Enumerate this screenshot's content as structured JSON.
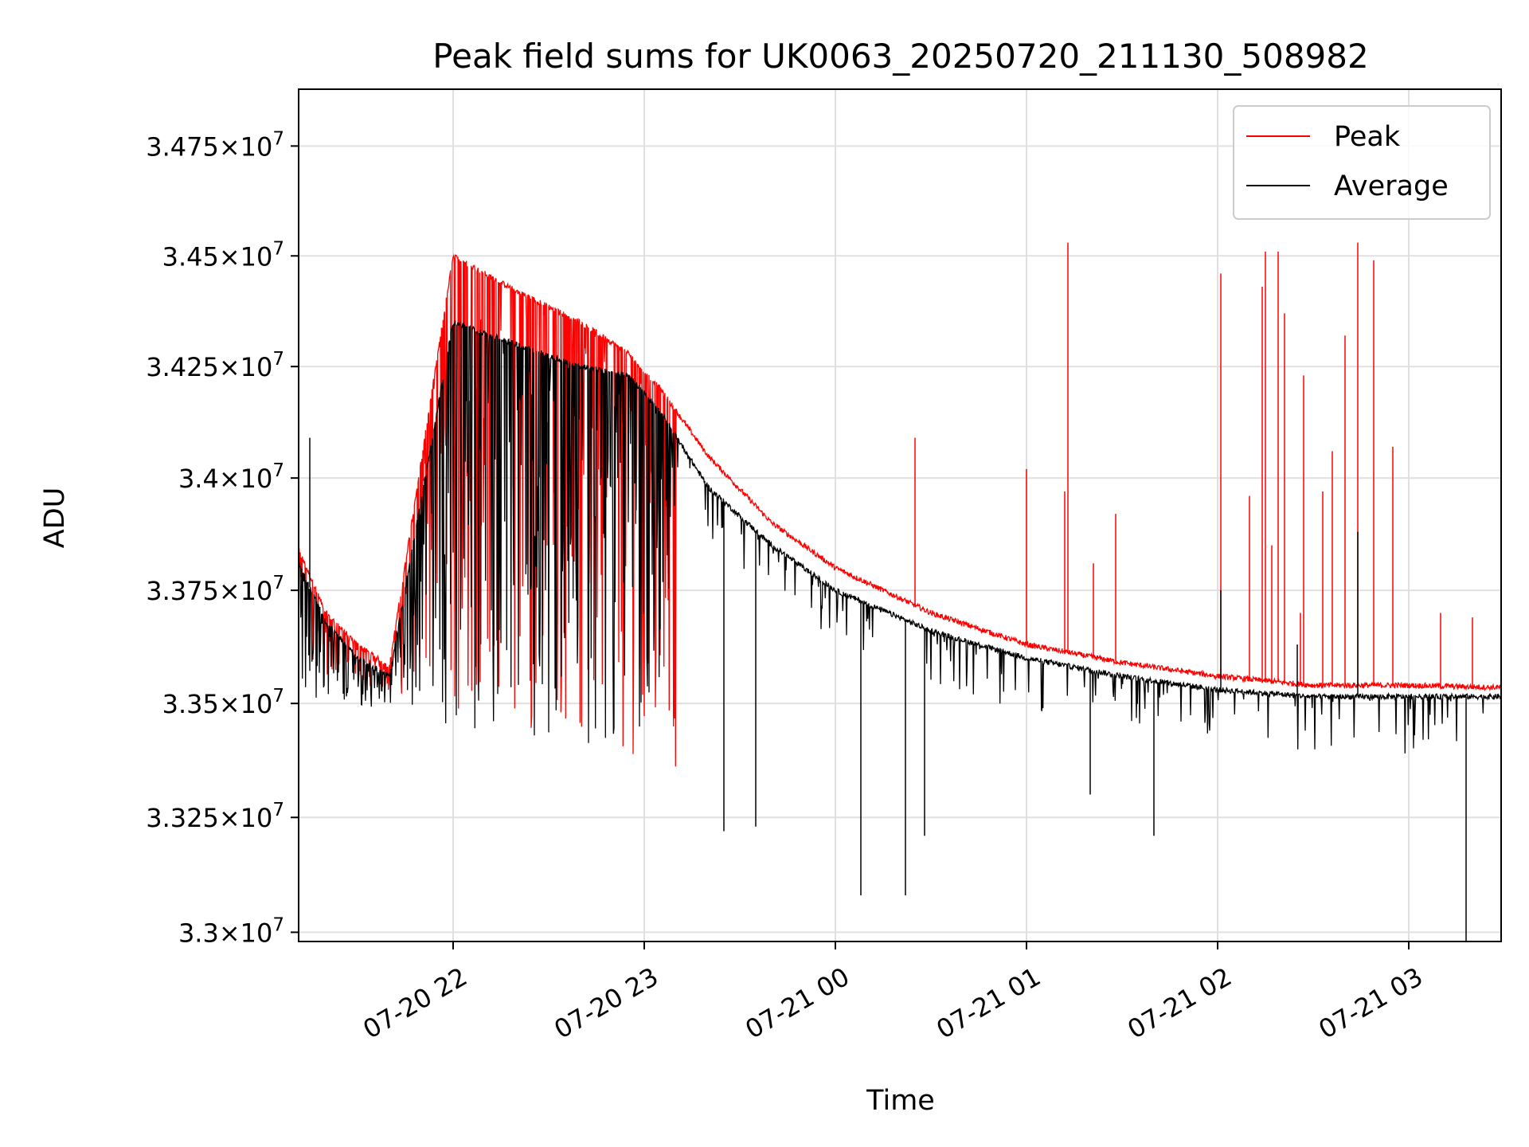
{
  "chart_data": {
    "type": "line",
    "title": "Peak field sums for UK0063_20250720_211130_508982",
    "xlabel": "Time",
    "ylabel": "ADU",
    "x_range": [
      "2025-07-20 21:11:30",
      "2025-07-21 03:29:00"
    ],
    "x_ticks": [
      {
        "label": "07-20 22",
        "time": "2025-07-20 22:00"
      },
      {
        "label": "07-20 23",
        "time": "2025-07-20 23:00"
      },
      {
        "label": "07-21 00",
        "time": "2025-07-21 00:00"
      },
      {
        "label": "07-21 01",
        "time": "2025-07-21 01:00"
      },
      {
        "label": "07-21 02",
        "time": "2025-07-21 02:00"
      },
      {
        "label": "07-21 03",
        "time": "2025-07-21 03:00"
      }
    ],
    "y_scale": "log",
    "ylim": [
      32980000,
      34880000
    ],
    "y_ticks": [
      {
        "mantissa": "3.3",
        "exp": "7",
        "value": 33000000
      },
      {
        "mantissa": "3.325",
        "exp": "7",
        "value": 33250000
      },
      {
        "mantissa": "3.35",
        "exp": "7",
        "value": 33500000
      },
      {
        "mantissa": "3.375",
        "exp": "7",
        "value": 33750000
      },
      {
        "mantissa": "3.4",
        "exp": "7",
        "value": 34000000
      },
      {
        "mantissa": "3.425",
        "exp": "7",
        "value": 34250000
      },
      {
        "mantissa": "3.45",
        "exp": "7",
        "value": 34500000
      },
      {
        "mantissa": "3.475",
        "exp": "7",
        "value": 34750000
      }
    ],
    "tick_times_mult": "×10",
    "grid": true,
    "legend_position": "top-right",
    "series": [
      {
        "name": "Peak",
        "color": "#ff0000",
        "baseline_points": [
          {
            "time": "2025-07-20 21:11:30",
            "value": 33840000
          },
          {
            "time": "2025-07-20 21:20",
            "value": 33700000
          },
          {
            "time": "2025-07-20 21:30",
            "value": 33630000
          },
          {
            "time": "2025-07-20 21:40",
            "value": 33580000
          },
          {
            "time": "2025-07-20 22:00",
            "value": 34500000
          },
          {
            "time": "2025-07-20 22:20",
            "value": 34420000
          },
          {
            "time": "2025-07-20 22:40",
            "value": 34350000
          },
          {
            "time": "2025-07-20 22:55",
            "value": 34280000
          },
          {
            "time": "2025-07-20 23:05",
            "value": 34200000
          },
          {
            "time": "2025-07-20 23:20",
            "value": 34050000
          },
          {
            "time": "2025-07-20 23:40",
            "value": 33900000
          },
          {
            "time": "2025-07-21 00:00",
            "value": 33800000
          },
          {
            "time": "2025-07-21 00:30",
            "value": 33700000
          },
          {
            "time": "2025-07-21 01:00",
            "value": 33630000
          },
          {
            "time": "2025-07-21 01:30",
            "value": 33590000
          },
          {
            "time": "2025-07-21 02:00",
            "value": 33560000
          },
          {
            "time": "2025-07-21 02:30",
            "value": 33540000
          },
          {
            "time": "2025-07-21 03:00",
            "value": 33540000
          },
          {
            "time": "2025-07-21 03:29",
            "value": 33535000
          }
        ],
        "spikes": [
          {
            "time": "2025-07-21 00:25",
            "value": 34090000
          },
          {
            "time": "2025-07-21 01:00",
            "value": 34020000
          },
          {
            "time": "2025-07-21 01:12",
            "value": 33970000
          },
          {
            "time": "2025-07-21 01:13",
            "value": 34530000
          },
          {
            "time": "2025-07-21 01:21",
            "value": 33810000
          },
          {
            "time": "2025-07-21 01:28",
            "value": 33920000
          },
          {
            "time": "2025-07-21 02:01",
            "value": 34460000
          },
          {
            "time": "2025-07-21 02:10",
            "value": 33960000
          },
          {
            "time": "2025-07-21 02:14",
            "value": 34430000
          },
          {
            "time": "2025-07-21 02:15",
            "value": 34510000
          },
          {
            "time": "2025-07-21 02:17",
            "value": 33850000
          },
          {
            "time": "2025-07-21 02:19",
            "value": 34510000
          },
          {
            "time": "2025-07-21 02:21",
            "value": 34370000
          },
          {
            "time": "2025-07-21 02:26",
            "value": 33700000
          },
          {
            "time": "2025-07-21 02:27",
            "value": 34230000
          },
          {
            "time": "2025-07-21 02:33",
            "value": 33970000
          },
          {
            "time": "2025-07-21 02:36",
            "value": 34060000
          },
          {
            "time": "2025-07-21 02:40",
            "value": 34320000
          },
          {
            "time": "2025-07-21 02:44",
            "value": 34530000
          },
          {
            "time": "2025-07-21 02:49",
            "value": 34490000
          },
          {
            "time": "2025-07-21 02:55",
            "value": 34070000
          },
          {
            "time": "2025-07-21 03:10",
            "value": 33700000
          },
          {
            "time": "2025-07-21 03:20",
            "value": 33690000
          }
        ]
      },
      {
        "name": "Average",
        "color": "#000000",
        "baseline_points": [
          {
            "time": "2025-07-20 21:11:30",
            "value": 33810000
          },
          {
            "time": "2025-07-20 21:20",
            "value": 33680000
          },
          {
            "time": "2025-07-20 21:30",
            "value": 33600000
          },
          {
            "time": "2025-07-20 21:40",
            "value": 33560000
          },
          {
            "time": "2025-07-20 22:00",
            "value": 34350000
          },
          {
            "time": "2025-07-20 22:20",
            "value": 34300000
          },
          {
            "time": "2025-07-20 22:40",
            "value": 34250000
          },
          {
            "time": "2025-07-20 22:55",
            "value": 34230000
          },
          {
            "time": "2025-07-20 23:05",
            "value": 34150000
          },
          {
            "time": "2025-07-20 23:20",
            "value": 33980000
          },
          {
            "time": "2025-07-20 23:40",
            "value": 33850000
          },
          {
            "time": "2025-07-21 00:00",
            "value": 33750000
          },
          {
            "time": "2025-07-21 00:30",
            "value": 33660000
          },
          {
            "time": "2025-07-21 01:00",
            "value": 33600000
          },
          {
            "time": "2025-07-21 01:30",
            "value": 33560000
          },
          {
            "time": "2025-07-21 02:00",
            "value": 33530000
          },
          {
            "time": "2025-07-21 02:30",
            "value": 33515000
          },
          {
            "time": "2025-07-21 03:00",
            "value": 33515000
          },
          {
            "time": "2025-07-21 03:29",
            "value": 33515000
          }
        ],
        "spikes": [
          {
            "time": "2025-07-20 21:15",
            "value": 34090000
          },
          {
            "time": "2025-07-20 23:25",
            "value": 33220000
          },
          {
            "time": "2025-07-20 23:35",
            "value": 33230000
          },
          {
            "time": "2025-07-21 00:08",
            "value": 33080000
          },
          {
            "time": "2025-07-21 00:22",
            "value": 33080000
          },
          {
            "time": "2025-07-21 00:28",
            "value": 33210000
          },
          {
            "time": "2025-07-21 01:20",
            "value": 33300000
          },
          {
            "time": "2025-07-21 01:40",
            "value": 33210000
          },
          {
            "time": "2025-07-21 02:01",
            "value": 33750000
          },
          {
            "time": "2025-07-21 02:25",
            "value": 33630000
          },
          {
            "time": "2025-07-21 02:44",
            "value": 33880000
          },
          {
            "time": "2025-07-21 03:18",
            "value": 32980000
          }
        ]
      }
    ]
  }
}
